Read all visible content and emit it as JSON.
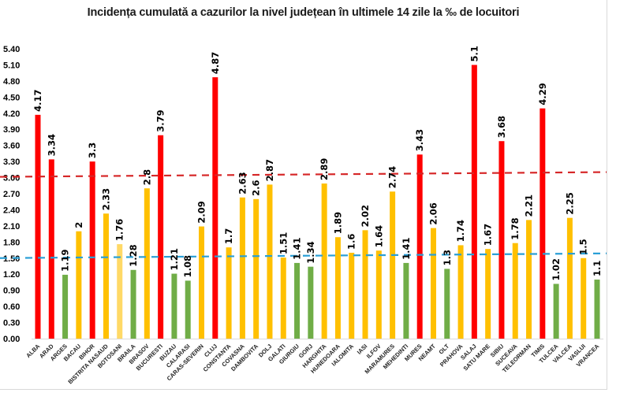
{
  "chart_data": {
    "type": "bar",
    "title": "Incidența cumulată a cazurilor la nivel județean în ultimele 14 zile la ‰ de locuitori",
    "xlabel": "",
    "ylabel": "",
    "ylim": [
      0,
      5.4
    ],
    "yticks": [
      "0.00",
      "0.30",
      "0.60",
      "0.90",
      "1.20",
      "1.50",
      "1.80",
      "2.10",
      "2.40",
      "2.70",
      "3.00",
      "3.30",
      "3.60",
      "3.90",
      "4.20",
      "4.50",
      "4.80",
      "5.10",
      "5.40"
    ],
    "grid": false,
    "legend": "none",
    "categories": [
      "ALBA",
      "ARAD",
      "ARGES",
      "BACAU",
      "BIHOR",
      "BISTRITA NASAUD",
      "BOTOSANI",
      "BRAILA",
      "BRASOV",
      "BUCURESTI",
      "BUZAU",
      "CALARASI",
      "CARAS-SEVERIN",
      "CLUJ",
      "CONSTANTA",
      "COVASNA",
      "DAMBOVITA",
      "DOLJ",
      "GALATI",
      "GIURGIU",
      "GORJ",
      "HARGHITA",
      "HUNEDOARA",
      "IALOMITA",
      "IASI",
      "ILFOV",
      "MARAMURES",
      "MEHEDINTI",
      "MURES",
      "NEAMT",
      "OLT",
      "PRAHOVA",
      "SALAJ",
      "SATU MARE",
      "SIBIU",
      "SUCEAVA",
      "TELEORMAN",
      "TIMIS",
      "TULCEA",
      "VALCEA",
      "VASLUI",
      "VRANCEA"
    ],
    "values": [
      4.17,
      3.34,
      1.19,
      2,
      3.3,
      2.33,
      1.76,
      1.28,
      2.8,
      3.79,
      1.21,
      1.08,
      2.09,
      4.87,
      1.7,
      2.63,
      2.6,
      2.87,
      1.51,
      1.41,
      1.34,
      2.89,
      1.89,
      1.6,
      2.02,
      1.64,
      2.74,
      1.41,
      3.43,
      2.06,
      1.3,
      1.74,
      5.1,
      1.67,
      3.68,
      1.78,
      2.21,
      4.29,
      1.02,
      2.25,
      1.5,
      1.1
    ],
    "labels": [
      "4.17",
      "3.34",
      "1.19",
      "2",
      "3.3",
      "2.33",
      "1.76",
      "1.28",
      "2.8",
      "3.79",
      "1.21",
      "1.08",
      "2.09",
      "4.87",
      "1.7",
      "2.63",
      "2.6",
      "2.87",
      "1.51",
      "1.41",
      "1.34",
      "2.89",
      "1.89",
      "1.6",
      "2.02",
      "1.64",
      "2.74",
      "1.41",
      "3.43",
      "2.06",
      "1.3",
      "1.74",
      "5.1",
      "1.67",
      "3.68",
      "1.78",
      "2.21",
      "4.29",
      "1.02",
      "2.25",
      "1.5",
      "1.1"
    ],
    "bar_colors": [
      "red",
      "red",
      "green",
      "yellow",
      "red",
      "yellow",
      "lightyellow",
      "green",
      "yellow",
      "red",
      "green",
      "green",
      "yellow",
      "red",
      "yellow",
      "yellow",
      "yellow",
      "yellow",
      "yellow",
      "green",
      "green",
      "yellow",
      "yellow",
      "yellow",
      "yellow",
      "yellow",
      "yellow",
      "green",
      "red",
      "yellow",
      "green",
      "yellow",
      "red",
      "yellow",
      "red",
      "yellow",
      "yellow",
      "red",
      "green",
      "yellow",
      "yellow",
      "green"
    ],
    "palette": {
      "red": "#ff0000",
      "yellow": "#ffc000",
      "lightyellow": "#ffd966",
      "green": "#70ad47"
    },
    "reference_lines": [
      {
        "name": "threshold-3",
        "value": 3.0,
        "color": "#d62728",
        "style": "dashed"
      },
      {
        "name": "threshold-1.5",
        "value": 1.5,
        "color": "#2a9fd6",
        "style": "dashed"
      }
    ]
  }
}
